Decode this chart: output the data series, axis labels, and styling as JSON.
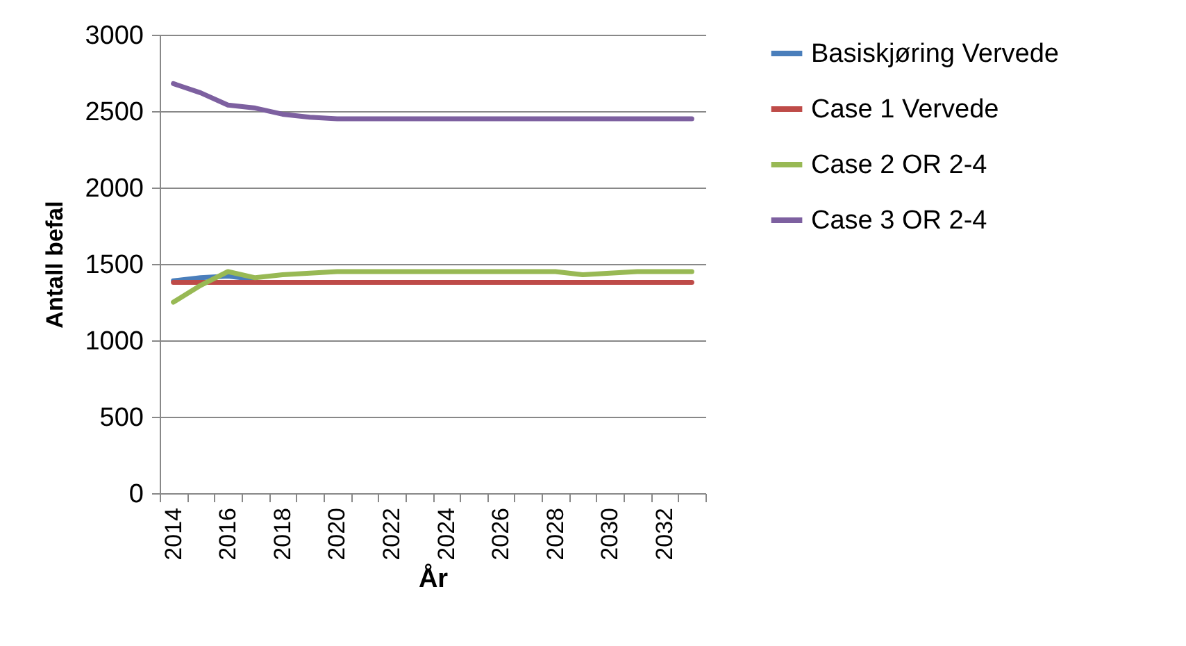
{
  "chart_data": {
    "type": "line",
    "xlabel": "År",
    "ylabel": "Antall befal",
    "categories": [
      "2014",
      null,
      "2016",
      null,
      "2018",
      null,
      "2020",
      null,
      "2022",
      null,
      "2024",
      null,
      "2026",
      null,
      "2028",
      null,
      "2030",
      null,
      "2032",
      null
    ],
    "series": [
      {
        "name": "Basiskjøring Vervede",
        "color": "#4a7ebb",
        "values": [
          1390,
          1410,
          1420,
          1400,
          null,
          null,
          null,
          null,
          null,
          null,
          null,
          null,
          null,
          null,
          null,
          null,
          null,
          null,
          null,
          null
        ]
      },
      {
        "name": "Case 1 Vervede",
        "color": "#be4b48",
        "values": [
          1380,
          1380,
          1380,
          1380,
          1380,
          1380,
          1380,
          1380,
          1380,
          1380,
          1380,
          1380,
          1380,
          1380,
          1380,
          1380,
          1380,
          1380,
          1380,
          1380
        ]
      },
      {
        "name": "Case 2 OR 2-4",
        "color": "#98b954",
        "values": [
          1250,
          1360,
          1450,
          1410,
          1430,
          1440,
          1450,
          1450,
          1450,
          1450,
          1450,
          1450,
          1450,
          1450,
          1450,
          1430,
          1440,
          1450,
          1450,
          1450
        ]
      },
      {
        "name": "Case 3 OR 2-4",
        "color": "#7d60a0",
        "values": [
          2680,
          2620,
          2540,
          2520,
          2480,
          2460,
          2450,
          2450,
          2450,
          2450,
          2450,
          2450,
          2450,
          2450,
          2450,
          2450,
          2450,
          2450,
          2450,
          2450
        ]
      }
    ],
    "ylim": [
      0,
      3000
    ],
    "yticks": [
      0,
      500,
      1000,
      1500,
      2000,
      2500,
      3000
    ],
    "grid": "y",
    "legend": "right",
    "marker": "none",
    "line_style": "solid"
  }
}
